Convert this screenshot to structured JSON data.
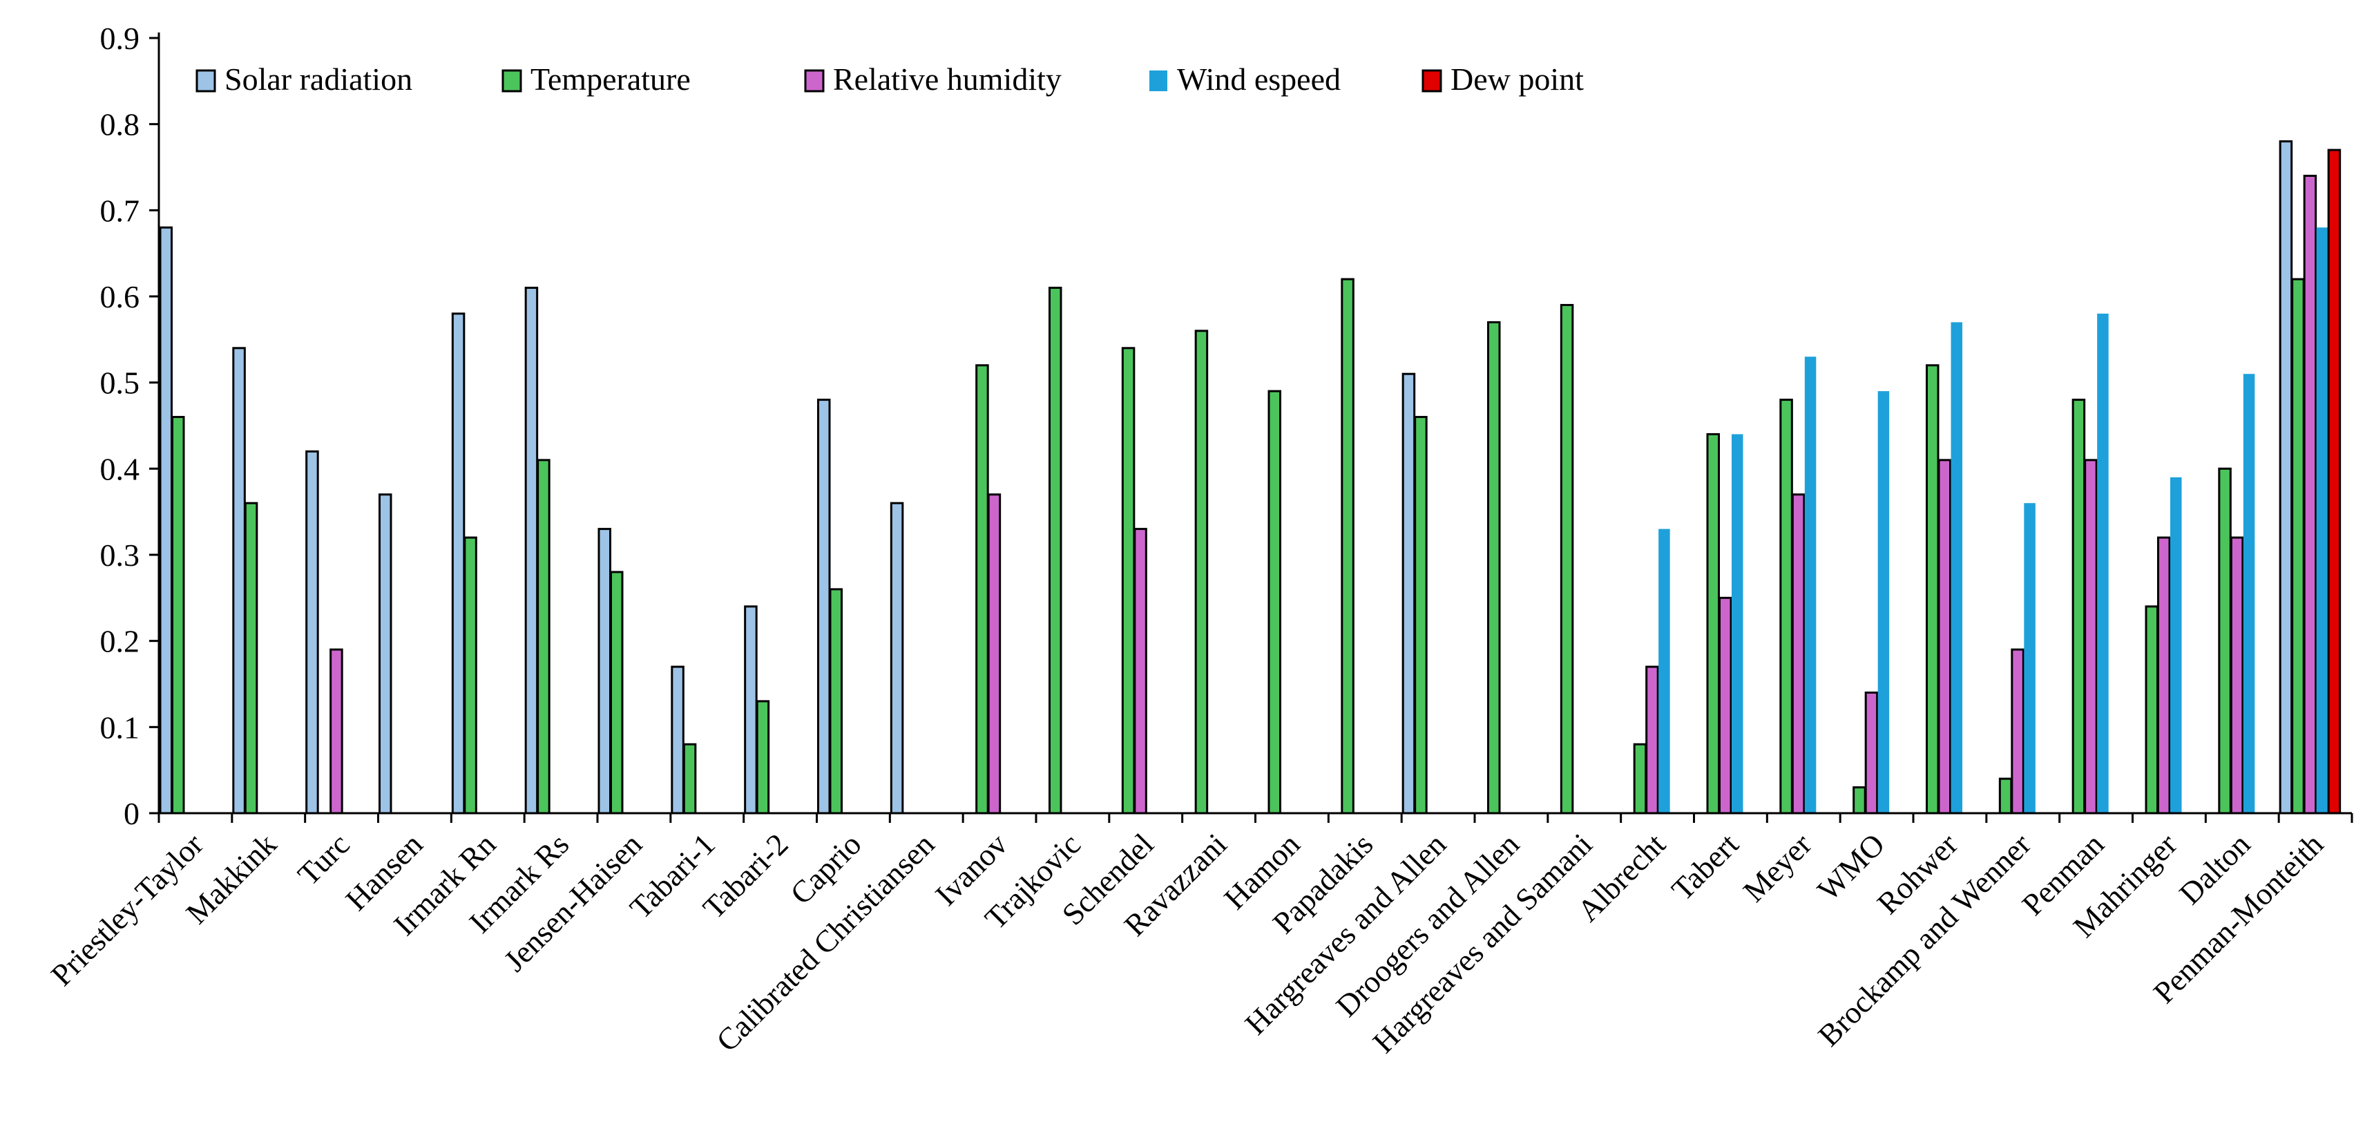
{
  "chart_data": {
    "type": "bar",
    "title": "",
    "xlabel": "",
    "ylabel": "",
    "ylim": [
      0,
      0.9
    ],
    "yticks": [
      "0",
      "0.1",
      "0.2",
      "0.3",
      "0.4",
      "0.5",
      "0.6",
      "0.7",
      "0.8",
      "0.9"
    ],
    "grid": false,
    "legend_position": "top-left",
    "categories": [
      "Priestley-Taylor",
      "Makkink",
      "Turc",
      "Hansen",
      "Irmark Rn",
      "Irmark Rs",
      "Jensen-Haisen",
      "Tabari-1",
      "Tabari-2",
      "Caprio",
      "Calibrated Christiansen",
      "Ivanov",
      "Trajkovic",
      "Schendel",
      "Ravazzani",
      "Hamon",
      "Papadakis",
      "Hargreaves and Allen",
      "Droogers and Allen",
      "Hargreaves and Samani",
      "Albrecht",
      "Tabert",
      "Meyer",
      "WMO",
      "Rohwer",
      "Brockamp and Wenner",
      "Penman",
      "Mahringer",
      "Dalton",
      "Penman-Monteith"
    ],
    "series": [
      {
        "name": "Solar radiation",
        "color": "#9DC3E6",
        "outline": true,
        "values": [
          0.68,
          0.54,
          0.42,
          0.37,
          0.58,
          0.61,
          0.33,
          0.17,
          0.24,
          0.48,
          0.36,
          null,
          null,
          null,
          null,
          null,
          null,
          0.51,
          null,
          null,
          null,
          null,
          null,
          null,
          null,
          null,
          null,
          null,
          null,
          0.78
        ]
      },
      {
        "name": "Temperature",
        "color": "#4CC45C",
        "outline": true,
        "values": [
          0.46,
          0.36,
          null,
          null,
          0.32,
          0.41,
          0.28,
          0.08,
          0.13,
          0.26,
          null,
          0.52,
          0.61,
          0.54,
          0.56,
          0.49,
          0.62,
          0.46,
          0.57,
          0.59,
          0.08,
          0.44,
          0.48,
          0.03,
          0.52,
          0.04,
          0.48,
          0.24,
          0.4,
          0.62
        ]
      },
      {
        "name": "Relative humidity",
        "color": "#CC66CC",
        "outline": true,
        "values": [
          null,
          null,
          0.19,
          null,
          null,
          null,
          null,
          null,
          null,
          null,
          null,
          0.37,
          null,
          0.33,
          null,
          null,
          null,
          null,
          null,
          null,
          0.17,
          0.25,
          0.37,
          0.14,
          0.41,
          0.19,
          0.41,
          0.32,
          0.32,
          0.74
        ]
      },
      {
        "name": "Wind espeed",
        "color": "#1EA1DB",
        "outline": false,
        "values": [
          null,
          null,
          null,
          null,
          null,
          null,
          null,
          null,
          null,
          null,
          null,
          null,
          null,
          null,
          null,
          null,
          null,
          null,
          null,
          null,
          0.33,
          0.44,
          0.53,
          0.49,
          0.57,
          0.36,
          0.58,
          0.39,
          0.51,
          0.68
        ]
      },
      {
        "name": "Dew point",
        "color": "#E00000",
        "outline": true,
        "values": [
          null,
          null,
          null,
          null,
          null,
          null,
          null,
          null,
          null,
          null,
          null,
          null,
          null,
          null,
          null,
          null,
          null,
          null,
          null,
          null,
          null,
          null,
          null,
          null,
          null,
          null,
          null,
          null,
          null,
          0.77
        ]
      }
    ]
  }
}
